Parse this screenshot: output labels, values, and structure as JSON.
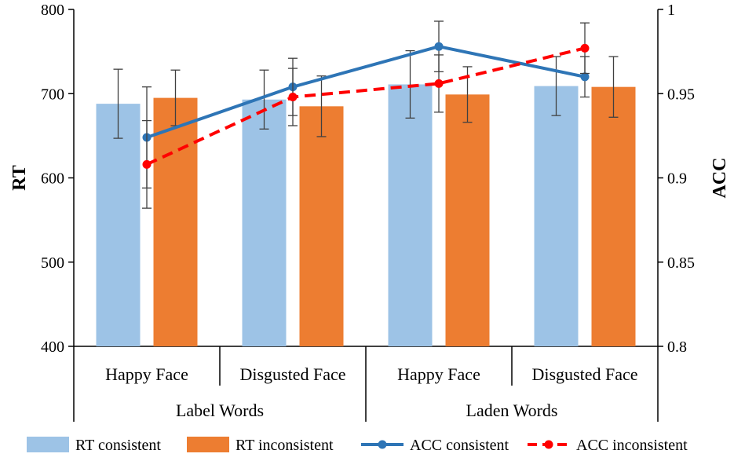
{
  "chart_data": {
    "type": "bar",
    "groups": [
      "Label Words",
      "Laden Words"
    ],
    "categories": [
      "Happy Face",
      "Disgusted Face",
      "Happy Face",
      "Disgusted Face"
    ],
    "ylabel": "RT",
    "y2label": "ACC",
    "ylim": [
      400,
      800
    ],
    "y2lim": [
      0.8,
      1.0
    ],
    "yticks": [
      "400",
      "500",
      "600",
      "700",
      "800"
    ],
    "y2ticks": [
      "0.8",
      "0.85",
      "0.9",
      "0.95",
      "1"
    ],
    "series": [
      {
        "name": "RT consistent",
        "kind": "bar",
        "axis": "left",
        "color": "#9DC3E6",
        "values": [
          688,
          693,
          711,
          709
        ],
        "errors": [
          41,
          35,
          40,
          35
        ]
      },
      {
        "name": "RT inconsistent",
        "kind": "bar",
        "axis": "left",
        "color": "#ED7D31",
        "values": [
          695,
          685,
          699,
          708
        ],
        "errors": [
          33,
          36,
          33,
          36
        ]
      },
      {
        "name": "ACC consistent",
        "kind": "line",
        "axis": "right",
        "color": "#2E75B6",
        "dashed": false,
        "values": [
          0.924,
          0.954,
          0.978,
          0.96
        ],
        "errors": [
          0.03,
          0.017,
          0.015,
          0.012
        ]
      },
      {
        "name": "ACC inconsistent",
        "kind": "line",
        "axis": "right",
        "color": "#FF0000",
        "dashed": true,
        "values": [
          0.908,
          0.948,
          0.956,
          0.977
        ],
        "errors": [
          0.026,
          0.017,
          0.017,
          0.015
        ]
      }
    ]
  }
}
